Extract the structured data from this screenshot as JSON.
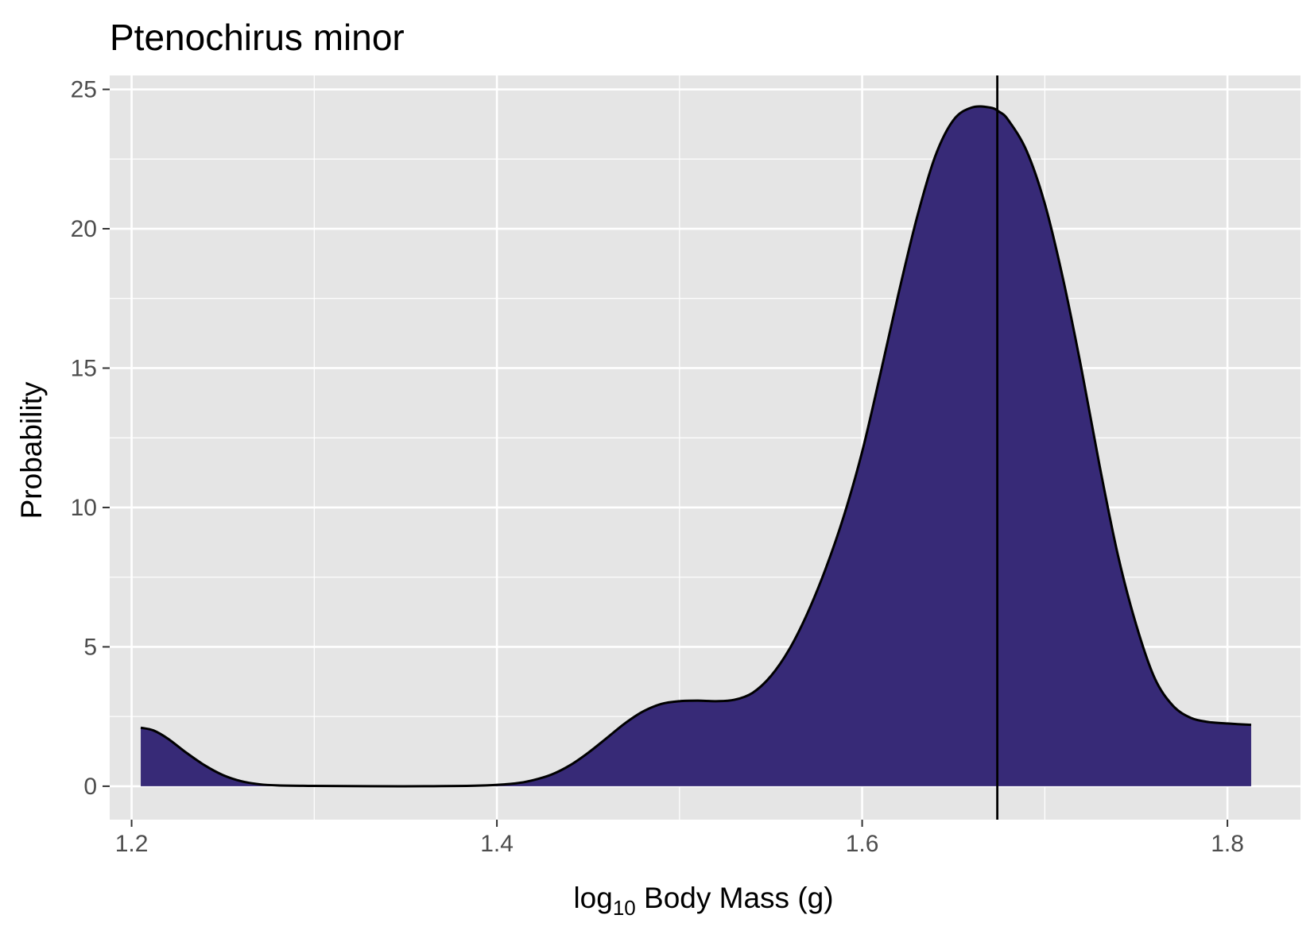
{
  "chart_data": {
    "type": "area",
    "title": "Ptenochirus minor",
    "xlabel": {
      "prefix": "log",
      "subscript": "10",
      "suffix": " Body Mass (g)"
    },
    "ylabel": "Probability",
    "xlim": [
      1.188,
      1.84
    ],
    "ylim": [
      -1.2,
      25.5
    ],
    "x_ticks": [
      1.2,
      1.4,
      1.6,
      1.8
    ],
    "x_tick_labels": [
      "1.2",
      "1.4",
      "1.6",
      "1.8"
    ],
    "y_ticks": [
      0,
      5,
      10,
      15,
      20,
      25
    ],
    "y_tick_labels": [
      "0",
      "5",
      "10",
      "15",
      "20",
      "25"
    ],
    "grid": true,
    "background": "#e5e5e5",
    "grid_color": "#ffffff",
    "fill_color": "#372a77",
    "line_color": "#000000",
    "reference_line_x": 1.674,
    "series": [
      {
        "x": [
          1.205,
          1.212,
          1.22,
          1.23,
          1.24,
          1.25,
          1.26,
          1.27,
          1.28,
          1.3,
          1.33,
          1.36,
          1.39,
          1.41,
          1.42,
          1.43,
          1.44,
          1.45,
          1.46,
          1.47,
          1.48,
          1.49,
          1.5,
          1.51,
          1.52,
          1.53,
          1.54,
          1.55,
          1.56,
          1.57,
          1.58,
          1.59,
          1.6,
          1.61,
          1.62,
          1.63,
          1.64,
          1.65,
          1.66,
          1.67,
          1.675,
          1.68,
          1.69,
          1.7,
          1.71,
          1.72,
          1.73,
          1.74,
          1.75,
          1.76,
          1.77,
          1.78,
          1.79,
          1.8,
          1.813
        ],
        "values": [
          2.1,
          2.0,
          1.7,
          1.2,
          0.75,
          0.4,
          0.18,
          0.07,
          0.03,
          0.01,
          0.0,
          0.0,
          0.02,
          0.1,
          0.22,
          0.42,
          0.75,
          1.2,
          1.72,
          2.25,
          2.68,
          2.95,
          3.05,
          3.07,
          3.05,
          3.1,
          3.35,
          3.95,
          4.9,
          6.2,
          7.8,
          9.7,
          12.0,
          14.8,
          17.7,
          20.4,
          22.6,
          23.9,
          24.35,
          24.35,
          24.2,
          23.9,
          22.8,
          20.9,
          18.2,
          15.0,
          11.5,
          8.3,
          5.8,
          3.9,
          2.9,
          2.45,
          2.3,
          2.25,
          2.2
        ]
      }
    ]
  }
}
